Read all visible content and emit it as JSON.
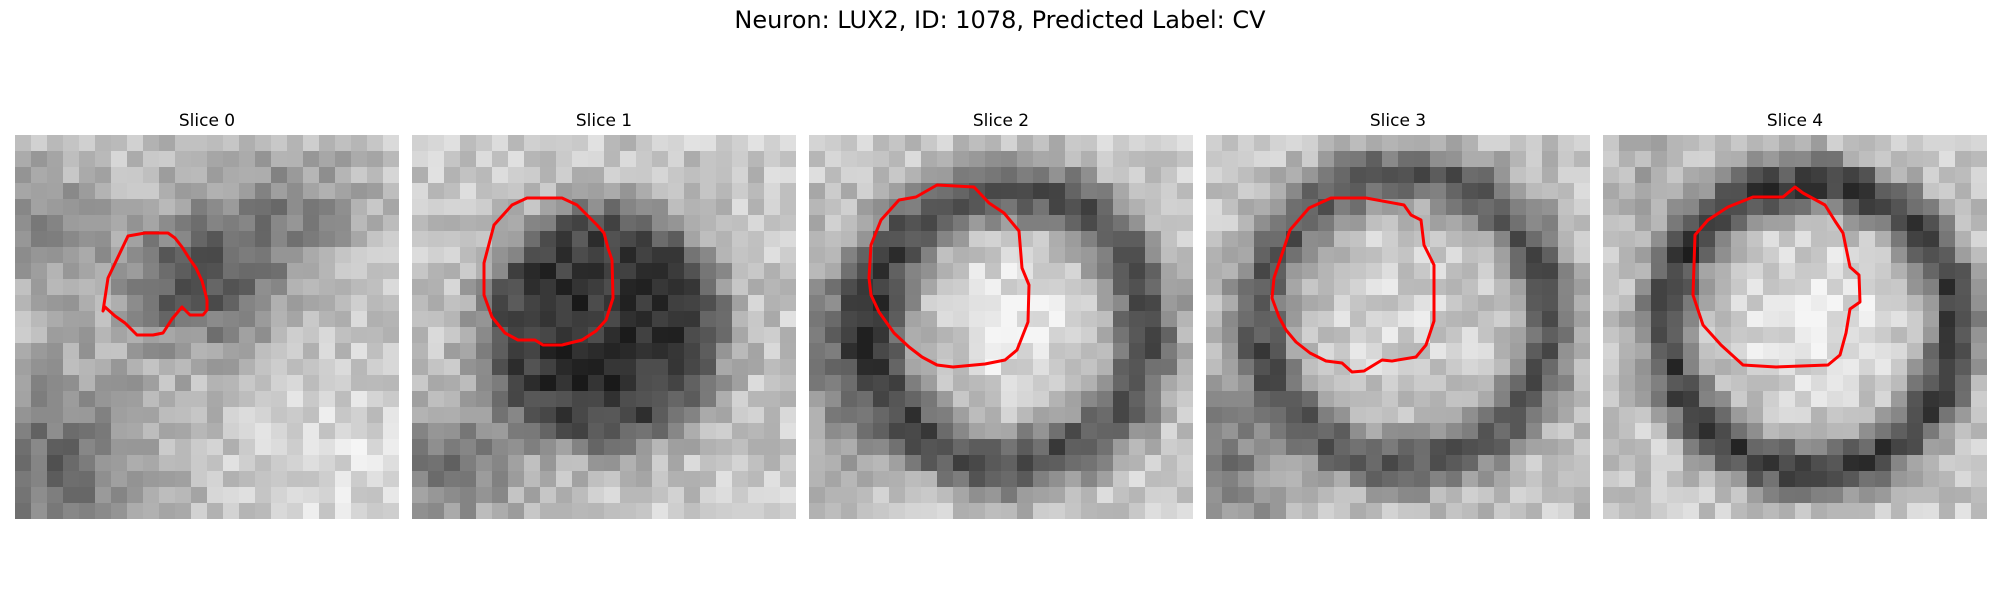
{
  "figure": {
    "title": "Neuron: LUX2, ID: 1078, Predicted Label: CV"
  },
  "panels": [
    {
      "title": "Slice 0"
    },
    {
      "title": "Slice 1"
    },
    {
      "title": "Slice 2"
    },
    {
      "title": "Slice 3"
    },
    {
      "title": "Slice 4"
    }
  ],
  "contour_color": "#ff0000"
}
